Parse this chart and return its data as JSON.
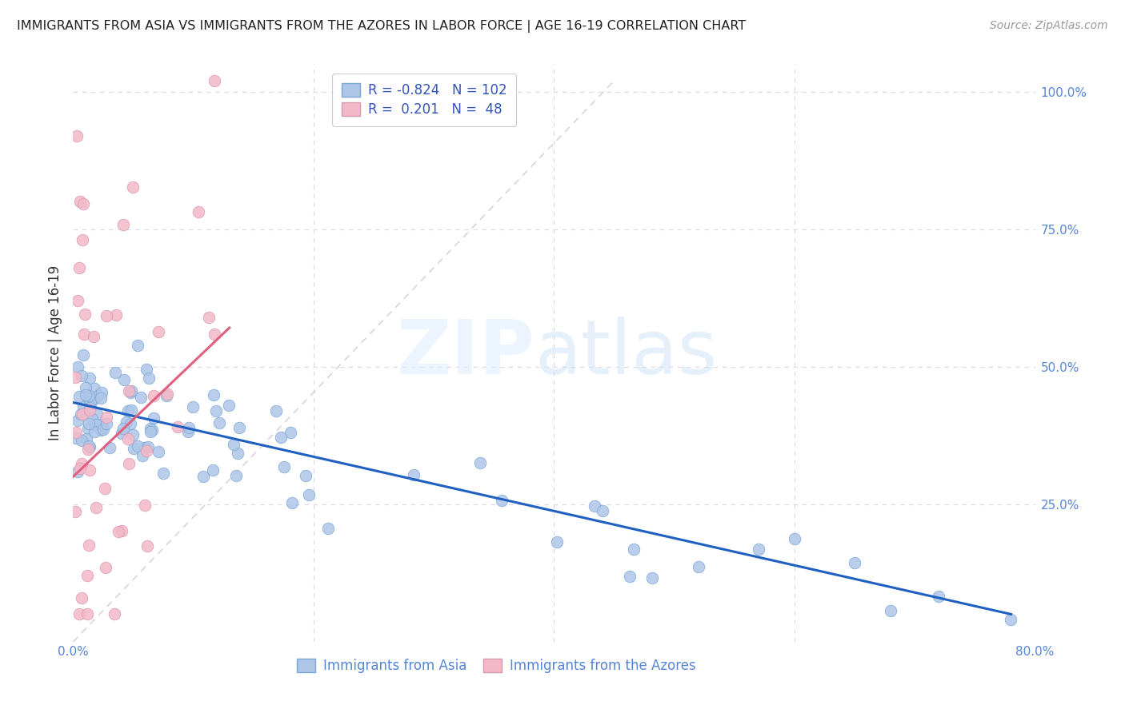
{
  "title": "IMMIGRANTS FROM ASIA VS IMMIGRANTS FROM THE AZORES IN LABOR FORCE | AGE 16-19 CORRELATION CHART",
  "source": "Source: ZipAtlas.com",
  "ylabel": "In Labor Force | Age 16-19",
  "xmin": 0.0,
  "xmax": 0.8,
  "ymin": 0.0,
  "ymax": 1.05,
  "legend_R_asia": "-0.824",
  "legend_N_asia": "102",
  "legend_R_azores": "0.201",
  "legend_N_azores": "48",
  "color_asia": "#aec6e8",
  "color_azores": "#f4b8c8",
  "color_asia_line": "#2060c0",
  "color_azores_line": "#e06080",
  "color_dashed": "#d0c0d0",
  "watermark_zip": "ZIP",
  "watermark_atlas": "atlas"
}
